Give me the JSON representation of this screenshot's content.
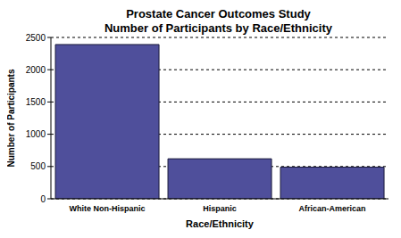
{
  "chart_data": {
    "type": "bar",
    "title": "Prostate Cancer Outcomes Study",
    "subtitle": "Number of Participants by Race/Ethnicity",
    "x_label": "Race/Ethnicity",
    "y_label": "Number of Participants",
    "categories": [
      "White Non-Hispanic",
      "Hispanic",
      "African-American"
    ],
    "values": [
      2390,
      620,
      490
    ],
    "color": "#4f4f9b",
    "ylim": [
      0,
      2500
    ],
    "yticks": [
      0,
      500,
      1000,
      1500,
      2000,
      2500
    ],
    "grid": true
  }
}
